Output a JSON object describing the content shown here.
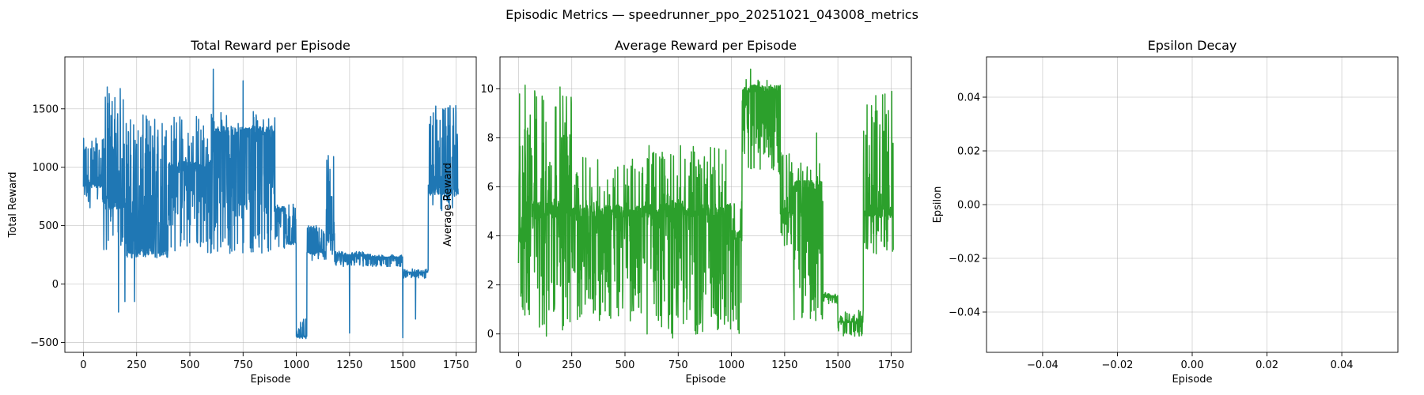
{
  "figure": {
    "suptitle": "Episodic Metrics — speedrunner_ppo_20251021_043008_metrics"
  },
  "chart_data": [
    {
      "type": "line",
      "title": "Total Reward per Episode",
      "xlabel": "Episode",
      "ylabel": "Total Reward",
      "xlim": [
        -87,
        1845
      ],
      "ylim": [
        -585,
        1945
      ],
      "xticks": [
        0,
        250,
        500,
        750,
        1000,
        1250,
        1500,
        1750
      ],
      "yticks": [
        -500,
        0,
        500,
        1000,
        1500
      ],
      "grid": true,
      "color": "#1f77b4",
      "x_range": [
        0,
        1760
      ],
      "segments": [
        {
          "x": [
            0,
            90
          ],
          "lo": 650,
          "hi": 1250,
          "base": 850
        },
        {
          "x": [
            90,
            200
          ],
          "lo": 250,
          "hi": 1700,
          "base": 700
        },
        {
          "x": [
            200,
            400
          ],
          "lo": 250,
          "hi": 1450,
          "base": 270
        },
        {
          "x": [
            400,
            600
          ],
          "lo": 260,
          "hi": 1480,
          "base": 1000
        },
        {
          "x": [
            600,
            900
          ],
          "lo": 260,
          "hi": 1490,
          "base": 1300
        },
        {
          "x": [
            900,
            950
          ],
          "lo": 300,
          "hi": 700,
          "base": 650
        },
        {
          "x": [
            950,
            1000
          ],
          "lo": 300,
          "hi": 700,
          "base": 350
        },
        {
          "x": [
            1000,
            1050
          ],
          "lo": -470,
          "hi": -300,
          "base": -450
        },
        {
          "x": [
            1050,
            1140
          ],
          "lo": 200,
          "hi": 500,
          "base": 270
        },
        {
          "x": [
            1140,
            1180
          ],
          "lo": 250,
          "hi": 1100,
          "base": 400
        },
        {
          "x": [
            1180,
            1350
          ],
          "lo": 150,
          "hi": 280,
          "base": 250
        },
        {
          "x": [
            1350,
            1500
          ],
          "lo": 150,
          "hi": 250,
          "base": 230
        },
        {
          "x": [
            1500,
            1620
          ],
          "lo": 50,
          "hi": 130,
          "base": 100
        },
        {
          "x": [
            1620,
            1760
          ],
          "lo": 600,
          "hi": 1530,
          "base": 800
        }
      ],
      "spikes": [
        {
          "x": 165,
          "y": -240
        },
        {
          "x": 195,
          "y": -150
        },
        {
          "x": 240,
          "y": -150
        },
        {
          "x": 610,
          "y": 1840
        },
        {
          "x": 750,
          "y": 1740
        },
        {
          "x": 1150,
          "y": 1100
        },
        {
          "x": 1250,
          "y": -420
        },
        {
          "x": 1500,
          "y": -460
        },
        {
          "x": 1560,
          "y": -300
        }
      ]
    },
    {
      "type": "line",
      "title": "Average Reward per Episode",
      "xlabel": "Episode",
      "ylabel": "Average Reward",
      "xlim": [
        -87,
        1845
      ],
      "ylim": [
        -0.75,
        11.3
      ],
      "xticks": [
        0,
        250,
        500,
        750,
        1000,
        1250,
        1500,
        1750
      ],
      "yticks": [
        0,
        2,
        4,
        6,
        8,
        10
      ],
      "grid": true,
      "color": "#2ca02c",
      "x_range": [
        0,
        1760
      ],
      "segments": [
        {
          "x": [
            0,
            60
          ],
          "lo": 0.5,
          "hi": 10.2,
          "base": 4
        },
        {
          "x": [
            60,
            250
          ],
          "lo": -0.1,
          "hi": 10.2,
          "base": 5
        },
        {
          "x": [
            250,
            600
          ],
          "lo": 0.5,
          "hi": 7.2,
          "base": 5
        },
        {
          "x": [
            600,
            1000
          ],
          "lo": -0.2,
          "hi": 7.7,
          "base": 5
        },
        {
          "x": [
            1000,
            1050
          ],
          "lo": -0.2,
          "hi": 5.5,
          "base": 4
        },
        {
          "x": [
            1050,
            1230
          ],
          "lo": 6.5,
          "hi": 10.4,
          "base": 10
        },
        {
          "x": [
            1230,
            1290
          ],
          "lo": 3.5,
          "hi": 7.5,
          "base": 5
        },
        {
          "x": [
            1290,
            1430
          ],
          "lo": 0.5,
          "hi": 7.0,
          "base": 6
        },
        {
          "x": [
            1430,
            1500
          ],
          "lo": 1.2,
          "hi": 1.7,
          "base": 1.5
        },
        {
          "x": [
            1500,
            1620
          ],
          "lo": -0.1,
          "hi": 1.0,
          "base": 0.5
        },
        {
          "x": [
            1620,
            1760
          ],
          "lo": 3.2,
          "hi": 10.0,
          "base": 5
        }
      ],
      "spikes": [
        {
          "x": 1090,
          "y": 10.8
        },
        {
          "x": 1400,
          "y": 8.2
        }
      ]
    },
    {
      "type": "line",
      "title": "Epsilon Decay",
      "xlabel": "Episode",
      "ylabel": "Epsilon",
      "xlim": [
        -0.055,
        0.055
      ],
      "ylim": [
        -0.055,
        0.055
      ],
      "xticks": [
        -0.04,
        -0.02,
        0.0,
        0.02,
        0.04
      ],
      "yticks": [
        -0.04,
        -0.02,
        0.0,
        0.02,
        0.04
      ],
      "tick_decimals": 2,
      "grid": true,
      "color": "#d62728",
      "x": [],
      "y": []
    }
  ]
}
